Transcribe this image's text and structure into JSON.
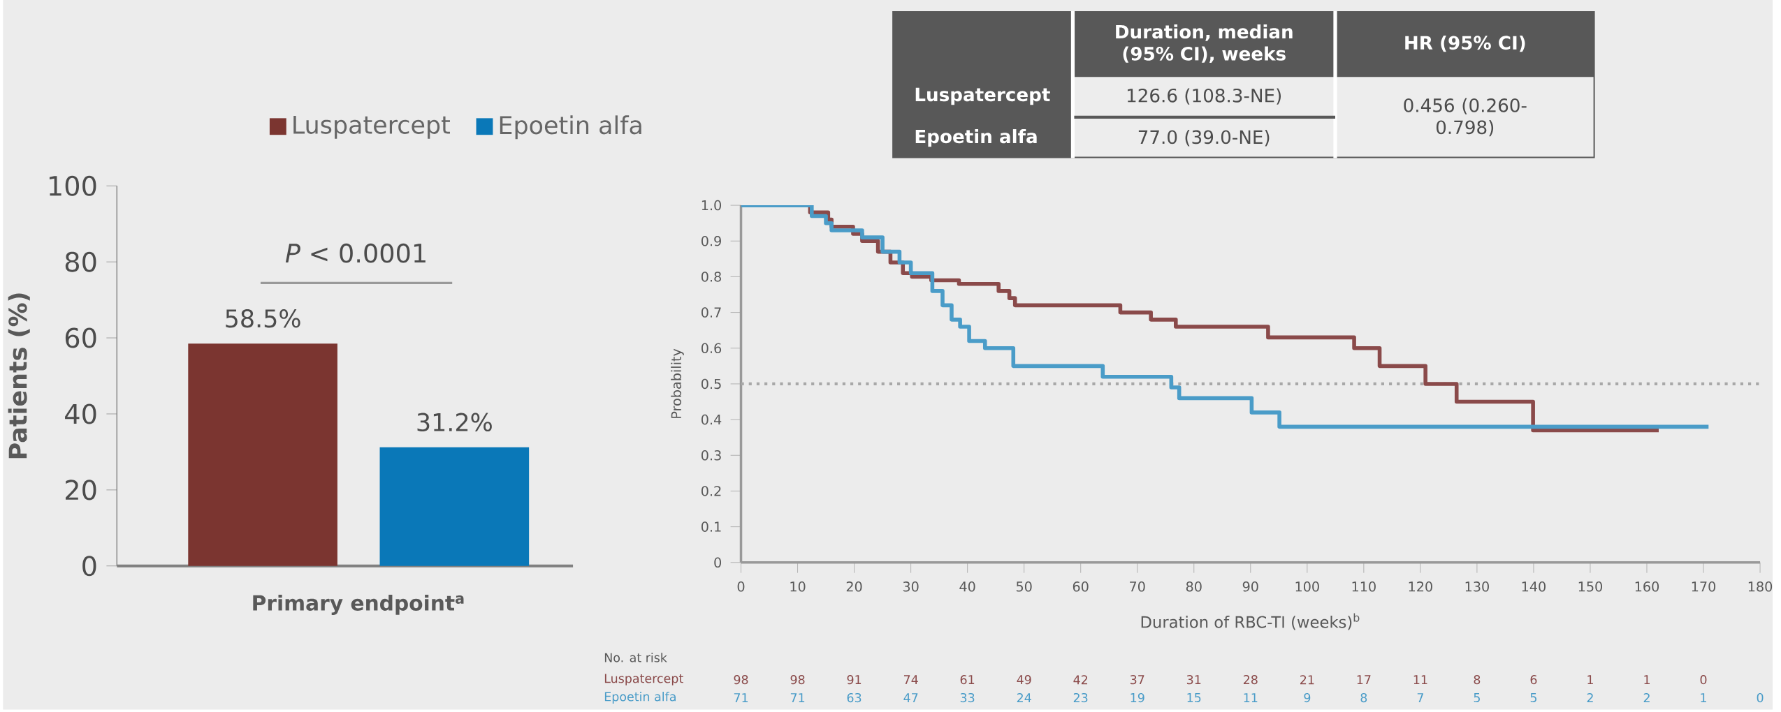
{
  "chart_data": [
    {
      "type": "bar",
      "ylabel": "Patients (%)",
      "categories": [
        "Primary endpoint$^{a}$"
      ],
      "series": [
        {
          "name": "Luspatercept",
          "color": "#7b3530",
          "values": [
            58.5
          ],
          "value_labels": [
            "58.5%"
          ]
        },
        {
          "name": "Epoetin alfa",
          "color": "#0a78b8",
          "values": [
            31.2
          ],
          "value_labels": [
            "31.2%"
          ]
        }
      ],
      "ylim": [
        0,
        100
      ],
      "yticks": [
        0,
        20,
        40,
        60,
        80,
        100
      ],
      "legend": "top",
      "annotations": [
        "*P* < 0.0001"
      ]
    },
    {
      "type": "step",
      "xlabel": "Duration of RBC-TI (weeks)$^{b}$",
      "ylabel": "Probability",
      "series": [
        {
          "color": "#8a4a4a",
          "x": [
            0,
            12.2,
            15.4,
            16,
            19.8,
            21.4,
            24.2,
            26.4,
            28.6,
            30.2,
            33.6,
            38.5,
            45.5,
            47.4,
            48.4,
            67,
            72.4,
            76.8,
            93.1,
            108.3,
            112.8,
            120.9,
            126.4,
            139.9,
            162.1
          ],
          "values": [
            1.0,
            0.98,
            0.96,
            0.94,
            0.92,
            0.9,
            0.87,
            0.84,
            0.81,
            0.8,
            0.79,
            0.78,
            0.76,
            0.74,
            0.72,
            0.7,
            0.68,
            0.66,
            0.63,
            0.6,
            0.55,
            0.5,
            0.45,
            0.37,
            0.37
          ]
        },
        {
          "color": "#4a9cc8",
          "x": [
            0,
            12.5,
            15,
            16,
            21.4,
            25,
            28,
            30,
            33.8,
            35.6,
            37.2,
            38.7,
            40.3,
            43.1,
            48.1,
            63.9,
            76,
            77.4,
            90.2,
            95.1,
            170.9
          ],
          "values": [
            1.0,
            0.97,
            0.95,
            0.93,
            0.91,
            0.87,
            0.84,
            0.81,
            0.76,
            0.72,
            0.68,
            0.66,
            0.62,
            0.6,
            0.55,
            0.52,
            0.49,
            0.46,
            0.42,
            0.38,
            0.38
          ]
        }
      ],
      "xlim": [
        0,
        180
      ],
      "xticks": [
        0,
        10,
        20,
        30,
        40,
        50,
        60,
        70,
        80,
        90,
        100,
        110,
        120,
        130,
        140,
        150,
        160,
        170,
        180
      ],
      "ylim": [
        0,
        1
      ],
      "yticks": [
        0,
        0.1,
        0.2,
        0.3,
        0.4,
        0.5,
        0.6,
        0.7,
        0.8,
        0.9,
        {
          "value": 1,
          "label": "1.0"
        }
      ],
      "ref_lines": [
        {
          "axis": "y",
          "value": 0.5,
          "color": "#a8a8a8",
          "line_style": "dotted"
        }
      ],
      "annotations": [
        "Duration, median (95% CI), weeks",
        "HR (95% CI)",
        "Luspatercept",
        "126.6 (108.3-NE)",
        "Epoetin alfa",
        "77.0 (39.0-NE)",
        "0.456 (0.260-0.798)",
        "No. at risk",
        "Luspatercept",
        "98",
        "98",
        "91",
        "74",
        "61",
        "49",
        "42",
        "37",
        "31",
        "28",
        "21",
        "17",
        "11",
        "8",
        "6",
        "1",
        "1",
        "0",
        "Epoetin alfa",
        "71",
        "71",
        "63",
        "47",
        "33",
        "24",
        "23",
        "19",
        "15",
        "11",
        "9",
        "8",
        "7",
        "5",
        "5",
        "2",
        "2",
        "1",
        "0"
      ]
    }
  ]
}
